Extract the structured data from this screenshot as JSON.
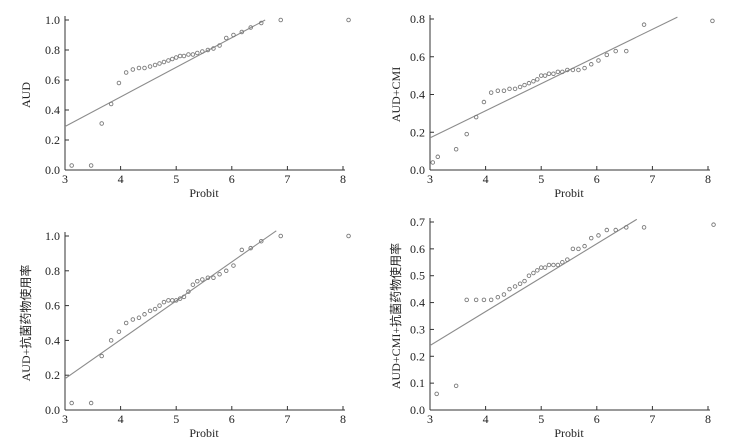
{
  "chart_data": [
    {
      "type": "scatter",
      "xlabel": "Probit",
      "ylabel": "AUD",
      "xlim": [
        3,
        8
      ],
      "ylim": [
        0,
        1.0
      ],
      "xticks": [
        "3",
        "4",
        "5",
        "6",
        "7",
        "8"
      ],
      "yticks": [
        "0.0",
        "0.2",
        "0.4",
        "0.6",
        "0.8",
        "1.0"
      ],
      "grid": false,
      "points": {
        "x": [
          3.12,
          3.47,
          3.66,
          3.83,
          3.97,
          4.1,
          4.22,
          4.33,
          4.43,
          4.53,
          4.62,
          4.7,
          4.78,
          4.86,
          4.93,
          5.0,
          5.07,
          5.14,
          5.22,
          5.3,
          5.38,
          5.47,
          5.57,
          5.67,
          5.78,
          5.9,
          6.03,
          6.18,
          6.34,
          6.53,
          6.88,
          8.1
        ],
        "y": [
          0.03,
          0.03,
          0.31,
          0.44,
          0.58,
          0.65,
          0.67,
          0.68,
          0.68,
          0.69,
          0.7,
          0.71,
          0.72,
          0.73,
          0.74,
          0.75,
          0.76,
          0.76,
          0.77,
          0.77,
          0.78,
          0.79,
          0.8,
          0.81,
          0.83,
          0.88,
          0.9,
          0.92,
          0.95,
          0.98,
          1.0,
          1.0
        ]
      },
      "fit_line": {
        "x": [
          3.0,
          6.6
        ],
        "y": [
          0.29,
          1.0
        ]
      }
    },
    {
      "type": "scatter",
      "xlabel": "Probit",
      "ylabel": "AUD+CMI",
      "xlim": [
        3,
        8
      ],
      "ylim": [
        0,
        0.8
      ],
      "xticks": [
        "3",
        "4",
        "5",
        "6",
        "7",
        "8"
      ],
      "yticks": [
        "0.0",
        "0.2",
        "0.4",
        "0.6",
        "0.8"
      ],
      "grid": false,
      "points": {
        "x": [
          3.05,
          3.14,
          3.47,
          3.66,
          3.83,
          3.97,
          4.1,
          4.22,
          4.33,
          4.43,
          4.53,
          4.62,
          4.7,
          4.78,
          4.86,
          4.93,
          5.0,
          5.07,
          5.14,
          5.22,
          5.3,
          5.38,
          5.47,
          5.57,
          5.67,
          5.78,
          5.9,
          6.03,
          6.18,
          6.34,
          6.53,
          6.85,
          8.08
        ],
        "y": [
          0.04,
          0.07,
          0.11,
          0.19,
          0.28,
          0.36,
          0.41,
          0.42,
          0.42,
          0.43,
          0.43,
          0.44,
          0.45,
          0.46,
          0.47,
          0.48,
          0.5,
          0.5,
          0.51,
          0.51,
          0.52,
          0.52,
          0.53,
          0.53,
          0.53,
          0.54,
          0.56,
          0.58,
          0.61,
          0.63,
          0.63,
          0.77,
          0.79
        ]
      },
      "fit_line": {
        "x": [
          3.0,
          7.45
        ],
        "y": [
          0.17,
          0.81
        ]
      }
    },
    {
      "type": "scatter",
      "xlabel": "Probit",
      "ylabel": "AUD+抗菌药物使用率",
      "xlim": [
        3,
        8
      ],
      "ylim": [
        0,
        1.0
      ],
      "xticks": [
        "3",
        "4",
        "5",
        "6",
        "7",
        "8"
      ],
      "yticks": [
        "0.0",
        "0.2",
        "0.4",
        "0.6",
        "0.8",
        "1.0"
      ],
      "grid": false,
      "points": {
        "x": [
          3.12,
          3.47,
          3.66,
          3.83,
          3.97,
          4.1,
          4.22,
          4.33,
          4.43,
          4.53,
          4.62,
          4.7,
          4.78,
          4.86,
          4.93,
          5.0,
          5.07,
          5.14,
          5.22,
          5.3,
          5.38,
          5.47,
          5.57,
          5.67,
          5.78,
          5.9,
          6.03,
          6.18,
          6.34,
          6.53,
          6.88,
          8.1
        ],
        "y": [
          0.04,
          0.04,
          0.31,
          0.4,
          0.45,
          0.5,
          0.52,
          0.53,
          0.55,
          0.57,
          0.58,
          0.6,
          0.62,
          0.63,
          0.63,
          0.63,
          0.64,
          0.65,
          0.68,
          0.72,
          0.74,
          0.75,
          0.76,
          0.76,
          0.78,
          0.8,
          0.83,
          0.92,
          0.93,
          0.97,
          1.0,
          1.0
        ]
      },
      "fit_line": {
        "x": [
          3.0,
          6.8
        ],
        "y": [
          0.18,
          1.03
        ]
      }
    },
    {
      "type": "scatter",
      "xlabel": "Probit",
      "ylabel": "AUD+CMI+抗菌药物使用率",
      "xlim": [
        3,
        8
      ],
      "ylim": [
        0,
        0.7
      ],
      "xticks": [
        "3",
        "4",
        "5",
        "6",
        "7",
        "8"
      ],
      "yticks": [
        "0.0",
        "0.1",
        "0.2",
        "0.3",
        "0.4",
        "0.5",
        "0.6",
        "0.7"
      ],
      "grid": false,
      "points": {
        "x": [
          3.12,
          3.47,
          3.66,
          3.83,
          3.97,
          4.1,
          4.22,
          4.33,
          4.43,
          4.53,
          4.62,
          4.7,
          4.78,
          4.86,
          4.93,
          5.0,
          5.07,
          5.14,
          5.22,
          5.3,
          5.38,
          5.47,
          5.57,
          5.67,
          5.78,
          5.9,
          6.03,
          6.18,
          6.34,
          6.53,
          6.85,
          8.1
        ],
        "y": [
          0.06,
          0.09,
          0.41,
          0.41,
          0.41,
          0.41,
          0.42,
          0.43,
          0.45,
          0.46,
          0.47,
          0.48,
          0.5,
          0.51,
          0.52,
          0.53,
          0.53,
          0.54,
          0.54,
          0.54,
          0.55,
          0.56,
          0.6,
          0.6,
          0.61,
          0.64,
          0.65,
          0.67,
          0.67,
          0.68,
          0.68,
          0.69
        ]
      },
      "fit_line": {
        "x": [
          3.0,
          6.72
        ],
        "y": [
          0.24,
          0.71
        ]
      }
    }
  ]
}
